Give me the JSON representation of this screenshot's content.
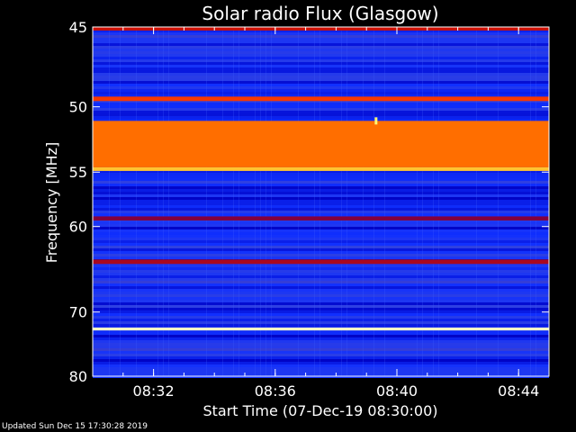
{
  "chart_data": {
    "type": "heatmap",
    "title": "Solar radio Flux (Glasgow)",
    "xlabel": "Start Time (07-Dec-19 08:30:00)",
    "ylabel": "Frequency [MHz]",
    "x_ticks": [
      "08:32",
      "08:36",
      "08:40",
      "08:44"
    ],
    "x_tick_minutes": [
      2,
      6,
      10,
      14
    ],
    "x_range_minutes": [
      0,
      15
    ],
    "y_ticks": [
      45,
      50,
      55,
      60,
      70,
      80
    ],
    "ylim": [
      45,
      80
    ],
    "y_scale": "inverse",
    "colormap": [
      "#000060",
      "#0000c0",
      "#1030ff",
      "#3040e0",
      "#800040",
      "#d01000",
      "#ff4000",
      "#ffa000",
      "#ffff80",
      "#ffffff"
    ],
    "bands": [
      {
        "freq_from": 45.0,
        "freq_to": 45.2,
        "level": 0.55
      },
      {
        "freq_from": 49.3,
        "freq_to": 49.6,
        "level": 0.65
      },
      {
        "freq_from": 51.0,
        "freq_to": 54.6,
        "level": 0.72
      },
      {
        "freq_from": 54.6,
        "freq_to": 54.9,
        "level": 0.82
      },
      {
        "freq_from": 59.0,
        "freq_to": 59.4,
        "level": 0.45
      },
      {
        "freq_from": 63.5,
        "freq_to": 64.0,
        "level": 0.5
      },
      {
        "freq_from": 72.2,
        "freq_to": 72.6,
        "level": 0.95
      }
    ],
    "bursts": [
      {
        "minute": 9.3,
        "freq": 51.0,
        "level": 0.88
      }
    ]
  },
  "footer": {
    "updated": "Updated Sun Dec 15 17:30:28 2019"
  }
}
